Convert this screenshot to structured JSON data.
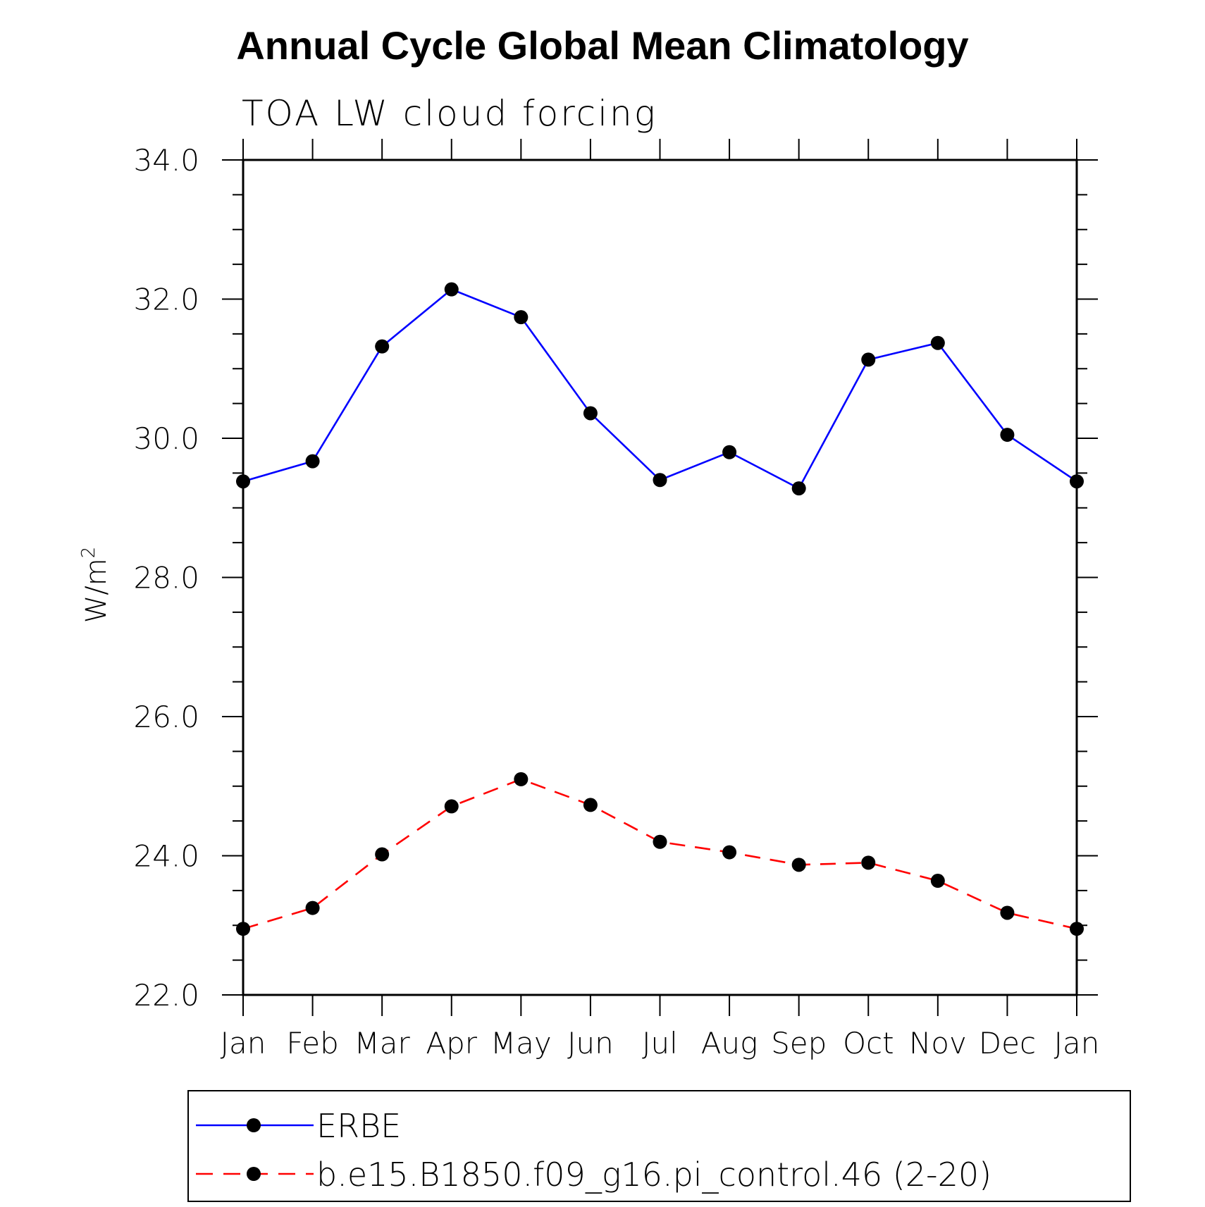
{
  "chart_data": {
    "type": "line",
    "title": "Annual Cycle Global Mean Climatology",
    "subtitle": "TOA LW cloud forcing",
    "xlabel": "",
    "ylabel": "W/m",
    "ylabel_superscript": "2",
    "categories": [
      "Jan",
      "Feb",
      "Mar",
      "Apr",
      "May",
      "Jun",
      "Jul",
      "Aug",
      "Sep",
      "Oct",
      "Nov",
      "Dec",
      "Jan"
    ],
    "ylim": [
      22.0,
      34.0
    ],
    "yticks": [
      "22.0",
      "24.0",
      "26.0",
      "28.0",
      "30.0",
      "32.0",
      "34.0"
    ],
    "legend_position": "bottom",
    "series": [
      {
        "name": "ERBE",
        "color": "#0000ff",
        "dash": "solid",
        "marker": "filled-circle",
        "values": [
          29.38,
          29.67,
          31.32,
          32.14,
          31.74,
          30.36,
          29.4,
          29.8,
          29.28,
          31.13,
          31.37,
          30.05,
          29.38
        ]
      },
      {
        "name": "b.e15.B1850.f09_g16.pi_control.46 (2-20)",
        "color": "#ff0000",
        "dash": "dashed",
        "marker": "filled-circle",
        "values": [
          22.95,
          23.25,
          24.02,
          24.71,
          25.1,
          24.73,
          24.2,
          24.05,
          23.87,
          23.9,
          23.64,
          23.18,
          22.95
        ]
      }
    ]
  }
}
